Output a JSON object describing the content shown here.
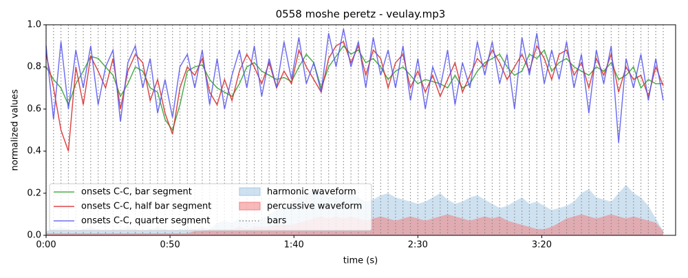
{
  "chart_data": {
    "type": "line",
    "title": "0558 moshe peretz - veulay.mp3",
    "xlabel": "time (s)",
    "ylabel": "normalized values",
    "xlim": [
      0,
      254
    ],
    "ylim": [
      0,
      1
    ],
    "xticks": [
      {
        "value": 0,
        "label": "0:00"
      },
      {
        "value": 50,
        "label": "0:50"
      },
      {
        "value": 100,
        "label": "1:40"
      },
      {
        "value": 150,
        "label": "2:30"
      },
      {
        "value": 200,
        "label": "3:20"
      }
    ],
    "yticks": [
      {
        "value": 0,
        "label": "0.0"
      },
      {
        "value": 0.2,
        "label": "0.2"
      },
      {
        "value": 0.4,
        "label": "0.4"
      },
      {
        "value": 0.6,
        "label": "0.6"
      },
      {
        "value": 0.8,
        "label": "0.8"
      },
      {
        "value": 1,
        "label": "1.0"
      }
    ],
    "legend": "lower left",
    "x": [
      0,
      3,
      6,
      9,
      12,
      15,
      18,
      21,
      24,
      27,
      30,
      33,
      36,
      39,
      42,
      45,
      48,
      51,
      54,
      57,
      60,
      63,
      66,
      69,
      72,
      75,
      78,
      81,
      84,
      87,
      90,
      93,
      96,
      99,
      102,
      105,
      108,
      111,
      114,
      117,
      120,
      123,
      126,
      129,
      132,
      135,
      138,
      141,
      144,
      147,
      150,
      153,
      156,
      159,
      162,
      165,
      168,
      171,
      174,
      177,
      180,
      183,
      186,
      189,
      192,
      195,
      198,
      201,
      204,
      207,
      210,
      213,
      216,
      219,
      222,
      225,
      228,
      231,
      234,
      237,
      240,
      243,
      246,
      249
    ],
    "series": [
      {
        "name": "onsets C-C, bar segment",
        "kind": "line",
        "color": "#2ca02c",
        "values": [
          0.8,
          0.74,
          0.7,
          0.62,
          0.72,
          0.78,
          0.85,
          0.84,
          0.8,
          0.76,
          0.66,
          0.72,
          0.8,
          0.78,
          0.7,
          0.68,
          0.55,
          0.5,
          0.62,
          0.78,
          0.8,
          0.81,
          0.74,
          0.7,
          0.68,
          0.66,
          0.72,
          0.8,
          0.82,
          0.78,
          0.76,
          0.74,
          0.75,
          0.73,
          0.8,
          0.86,
          0.82,
          0.7,
          0.8,
          0.85,
          0.9,
          0.86,
          0.88,
          0.82,
          0.84,
          0.8,
          0.74,
          0.78,
          0.8,
          0.76,
          0.72,
          0.74,
          0.73,
          0.72,
          0.7,
          0.76,
          0.7,
          0.72,
          0.78,
          0.82,
          0.84,
          0.86,
          0.8,
          0.76,
          0.78,
          0.86,
          0.84,
          0.88,
          0.78,
          0.82,
          0.84,
          0.8,
          0.78,
          0.76,
          0.8,
          0.78,
          0.82,
          0.74,
          0.76,
          0.8,
          0.7,
          0.74,
          0.72,
          0.72
        ]
      },
      {
        "name": "onsets C-C, half bar segment",
        "kind": "line",
        "color": "#d62728",
        "values": [
          0.86,
          0.7,
          0.5,
          0.4,
          0.8,
          0.62,
          0.85,
          0.78,
          0.7,
          0.84,
          0.6,
          0.78,
          0.86,
          0.82,
          0.64,
          0.74,
          0.58,
          0.48,
          0.7,
          0.8,
          0.76,
          0.84,
          0.68,
          0.62,
          0.74,
          0.64,
          0.78,
          0.86,
          0.8,
          0.72,
          0.82,
          0.7,
          0.78,
          0.72,
          0.88,
          0.8,
          0.74,
          0.68,
          0.84,
          0.9,
          0.92,
          0.82,
          0.9,
          0.76,
          0.88,
          0.84,
          0.7,
          0.82,
          0.86,
          0.7,
          0.78,
          0.68,
          0.76,
          0.66,
          0.74,
          0.82,
          0.68,
          0.76,
          0.84,
          0.8,
          0.88,
          0.82,
          0.74,
          0.8,
          0.86,
          0.78,
          0.9,
          0.84,
          0.74,
          0.86,
          0.88,
          0.76,
          0.82,
          0.7,
          0.84,
          0.76,
          0.86,
          0.68,
          0.8,
          0.74,
          0.76,
          0.66,
          0.8,
          0.71
        ]
      },
      {
        "name": "onsets C-C, quarter segment",
        "kind": "line",
        "color": "#5555ee",
        "values": [
          0.9,
          0.55,
          0.92,
          0.6,
          0.88,
          0.7,
          0.9,
          0.62,
          0.8,
          0.88,
          0.54,
          0.82,
          0.9,
          0.7,
          0.84,
          0.58,
          0.74,
          0.56,
          0.8,
          0.86,
          0.7,
          0.88,
          0.62,
          0.84,
          0.6,
          0.76,
          0.88,
          0.7,
          0.9,
          0.66,
          0.84,
          0.7,
          0.92,
          0.74,
          0.94,
          0.72,
          0.82,
          0.68,
          0.96,
          0.8,
          0.98,
          0.8,
          0.92,
          0.7,
          0.94,
          0.76,
          0.88,
          0.7,
          0.9,
          0.64,
          0.84,
          0.6,
          0.8,
          0.7,
          0.88,
          0.62,
          0.82,
          0.7,
          0.92,
          0.76,
          0.92,
          0.72,
          0.86,
          0.6,
          0.94,
          0.76,
          0.96,
          0.72,
          0.88,
          0.74,
          0.92,
          0.7,
          0.86,
          0.58,
          0.88,
          0.72,
          0.9,
          0.44,
          0.84,
          0.7,
          0.86,
          0.64,
          0.84,
          0.64
        ]
      },
      {
        "name": "harmonic waveform",
        "kind": "area",
        "color": "#a6c8e4",
        "values": [
          0.02,
          0.03,
          0.04,
          0.03,
          0.02,
          0.03,
          0.04,
          0.03,
          0.02,
          0.03,
          0.03,
          0.04,
          0.03,
          0.02,
          0.03,
          0.04,
          0.03,
          0.02,
          0.03,
          0.04,
          0.03,
          0.04,
          0.03,
          0.06,
          0.07,
          0.06,
          0.08,
          0.07,
          0.06,
          0.08,
          0.1,
          0.12,
          0.14,
          0.16,
          0.18,
          0.2,
          0.22,
          0.2,
          0.18,
          0.19,
          0.21,
          0.2,
          0.18,
          0.16,
          0.17,
          0.19,
          0.2,
          0.18,
          0.17,
          0.16,
          0.15,
          0.16,
          0.18,
          0.2,
          0.17,
          0.15,
          0.16,
          0.18,
          0.19,
          0.17,
          0.15,
          0.13,
          0.14,
          0.16,
          0.18,
          0.15,
          0.16,
          0.14,
          0.12,
          0.13,
          0.14,
          0.16,
          0.2,
          0.22,
          0.18,
          0.17,
          0.16,
          0.2,
          0.24,
          0.2,
          0.18,
          0.14,
          0.08,
          0.02
        ]
      },
      {
        "name": "percussive waveform",
        "kind": "area",
        "color": "#f08080",
        "values": [
          0.01,
          0.01,
          0.01,
          0.01,
          0.01,
          0.01,
          0.01,
          0.01,
          0.01,
          0.01,
          0.01,
          0.01,
          0.01,
          0.01,
          0.01,
          0.01,
          0.01,
          0.01,
          0.01,
          0.01,
          0.02,
          0.02,
          0.03,
          0.03,
          0.03,
          0.03,
          0.04,
          0.03,
          0.04,
          0.04,
          0.04,
          0.05,
          0.05,
          0.05,
          0.06,
          0.07,
          0.08,
          0.09,
          0.08,
          0.09,
          0.08,
          0.09,
          0.08,
          0.07,
          0.08,
          0.09,
          0.08,
          0.07,
          0.08,
          0.09,
          0.08,
          0.07,
          0.08,
          0.09,
          0.1,
          0.09,
          0.08,
          0.07,
          0.08,
          0.09,
          0.08,
          0.09,
          0.07,
          0.06,
          0.05,
          0.04,
          0.03,
          0.03,
          0.04,
          0.06,
          0.08,
          0.09,
          0.1,
          0.09,
          0.08,
          0.09,
          0.1,
          0.09,
          0.08,
          0.09,
          0.08,
          0.07,
          0.06,
          0.02
        ]
      },
      {
        "name": "bars",
        "kind": "vlines",
        "color": "#888888"
      }
    ]
  }
}
